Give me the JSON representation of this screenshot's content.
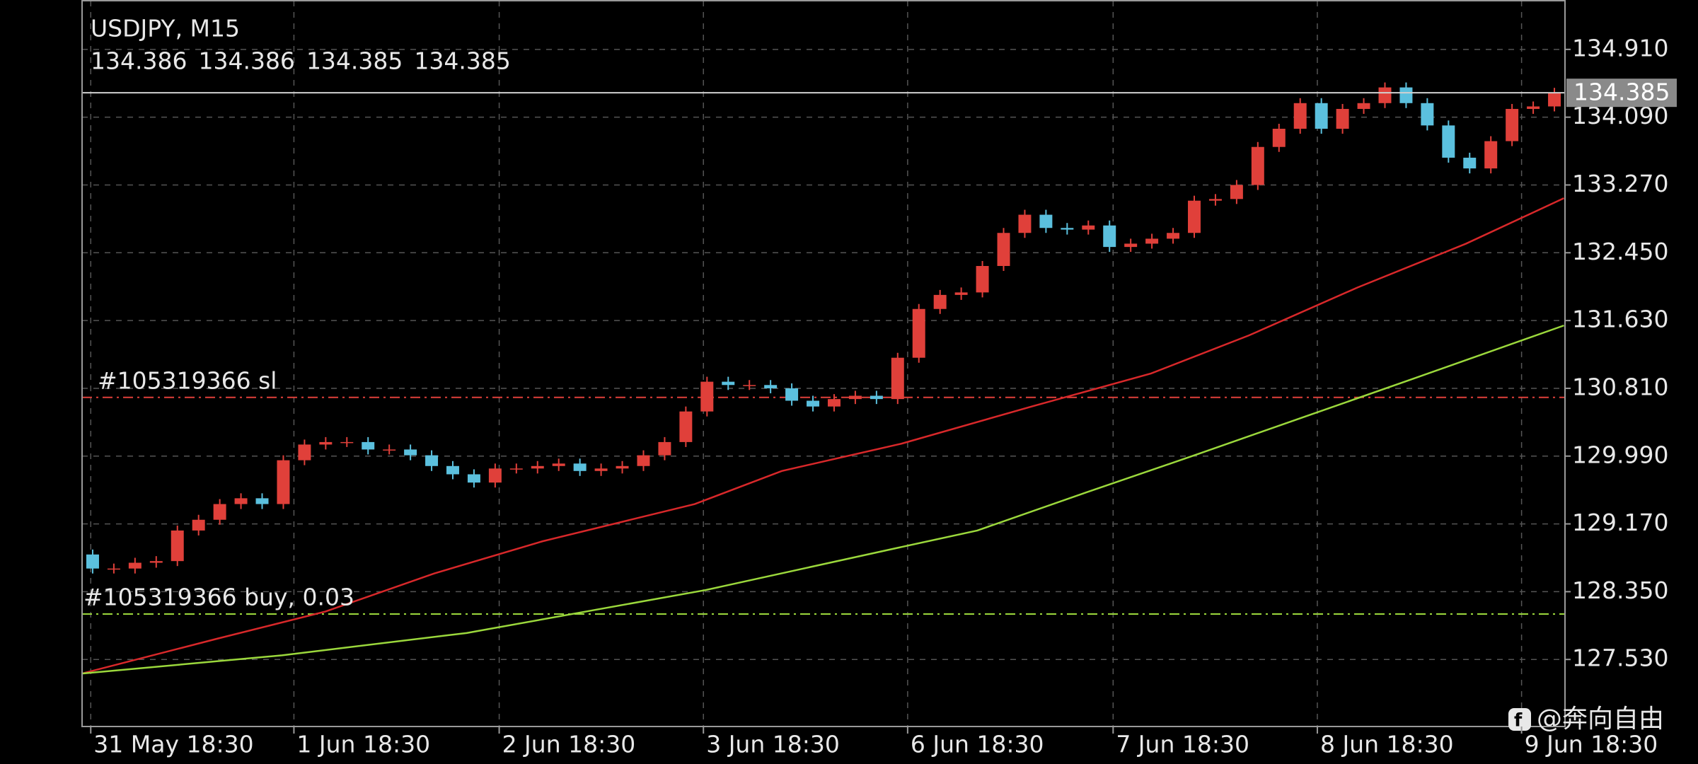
{
  "chart_data": {
    "type": "candlestick",
    "title": "USDJPY, M15",
    "ohlc": [
      134.386,
      134.386,
      134.385,
      134.385
    ],
    "current_price": 134.385,
    "up_color": "#e0403a",
    "down_color": "#5bc0de",
    "x": [
      0.5,
      1.5,
      2.5,
      3.5,
      4.5,
      5.5,
      6.5,
      7.5,
      8.5,
      9.5,
      10.5,
      11.5,
      12.5,
      13.5,
      14.5,
      15.5,
      16.5,
      17.5,
      18.5,
      19.5,
      20.5,
      21.5,
      22.5,
      23.5,
      24.5,
      25.5,
      26.5,
      27.5,
      28.5,
      29.5,
      30.5,
      31.5,
      32.5,
      33.5,
      34.5,
      35.5,
      36.5,
      37.5,
      38.5,
      39.5,
      40.5,
      41.5,
      42.5,
      43.5,
      44.5,
      45.5,
      46.5,
      47.5,
      48.5,
      49.5,
      50.5,
      51.5,
      52.5,
      53.5,
      54.5,
      55.5,
      56.5,
      57.5,
      58.5,
      59.5,
      60.5,
      61.5,
      62.5,
      63.5,
      64.5,
      65.5,
      66.5,
      67.5,
      68.5,
      69.5
    ],
    "open": [
      128.8,
      128.63,
      128.63,
      128.7,
      128.72,
      129.09,
      129.22,
      129.41,
      129.48,
      129.41,
      129.94,
      130.13,
      130.16,
      130.16,
      130.07,
      130.07,
      130.0,
      129.87,
      129.77,
      129.67,
      129.84,
      129.84,
      129.87,
      129.9,
      129.81,
      129.84,
      129.87,
      130.0,
      130.16,
      130.53,
      130.89,
      130.85,
      130.85,
      130.81,
      130.66,
      130.59,
      130.68,
      130.72,
      130.68,
      131.18,
      131.77,
      131.94,
      131.97,
      132.29,
      132.69,
      132.91,
      132.75,
      132.73,
      132.78,
      132.52,
      132.56,
      132.62,
      132.69,
      133.08,
      133.1,
      133.27,
      133.73,
      133.95,
      134.26,
      133.95,
      134.19,
      134.26,
      134.45,
      134.26,
      133.99,
      133.6,
      133.47,
      133.8,
      134.19,
      134.22
    ],
    "high": [
      128.86,
      128.69,
      128.76,
      128.78,
      129.15,
      129.28,
      129.47,
      129.54,
      129.54,
      130.0,
      130.19,
      130.22,
      130.22,
      130.22,
      130.13,
      130.13,
      130.06,
      129.93,
      129.83,
      129.9,
      129.9,
      129.93,
      129.96,
      129.96,
      129.9,
      129.93,
      130.06,
      130.22,
      130.59,
      130.95,
      130.95,
      130.91,
      130.91,
      130.87,
      130.72,
      130.74,
      130.78,
      130.78,
      131.24,
      131.83,
      132.0,
      132.03,
      132.35,
      132.75,
      132.97,
      132.97,
      132.81,
      132.84,
      132.84,
      132.62,
      132.68,
      132.75,
      133.14,
      133.16,
      133.33,
      133.79,
      134.01,
      134.32,
      134.32,
      134.25,
      134.32,
      134.51,
      134.51,
      134.32,
      134.05,
      133.66,
      133.86,
      134.25,
      134.28,
      134.445
    ],
    "low": [
      128.57,
      128.57,
      128.57,
      128.64,
      128.66,
      129.03,
      129.16,
      129.35,
      129.35,
      129.35,
      129.88,
      130.07,
      130.1,
      130.01,
      130.01,
      129.94,
      129.81,
      129.71,
      129.61,
      129.61,
      129.78,
      129.78,
      129.81,
      129.75,
      129.75,
      129.78,
      129.81,
      129.94,
      130.1,
      130.47,
      130.79,
      130.79,
      130.75,
      130.6,
      130.53,
      130.53,
      130.62,
      130.62,
      130.62,
      131.12,
      131.71,
      131.88,
      131.91,
      132.23,
      132.63,
      132.69,
      132.67,
      132.67,
      132.46,
      132.46,
      132.5,
      132.56,
      132.63,
      133.02,
      133.04,
      133.21,
      133.67,
      133.89,
      133.89,
      133.89,
      134.13,
      134.2,
      134.2,
      133.93,
      133.54,
      133.41,
      133.41,
      133.74,
      134.13,
      134.16
    ],
    "close": [
      128.63,
      128.63,
      128.7,
      128.72,
      129.09,
      129.22,
      129.41,
      129.48,
      129.41,
      129.94,
      130.13,
      130.16,
      130.16,
      130.07,
      130.07,
      130.0,
      129.87,
      129.77,
      129.67,
      129.84,
      129.84,
      129.87,
      129.9,
      129.81,
      129.84,
      129.87,
      130.0,
      130.16,
      130.53,
      130.89,
      130.85,
      130.85,
      130.81,
      130.66,
      130.59,
      130.68,
      130.72,
      130.68,
      131.18,
      131.77,
      131.94,
      131.97,
      132.29,
      132.69,
      132.91,
      132.75,
      132.73,
      132.78,
      132.52,
      132.56,
      132.62,
      132.69,
      133.08,
      133.1,
      133.27,
      133.73,
      133.95,
      134.26,
      133.95,
      134.19,
      134.26,
      134.45,
      134.26,
      133.99,
      133.6,
      133.47,
      133.8,
      134.19,
      134.22,
      134.385
    ],
    "series": [
      {
        "color": "#d8282a",
        "x": [
          0,
          6.36,
          11.49,
          16.62,
          21.74,
          28.92,
          33.03,
          38.67,
          44.82,
          50.46,
          55.08,
          60.21,
          65.33,
          69.95
        ],
        "values": [
          127.36,
          127.78,
          128.11,
          128.57,
          128.96,
          129.41,
          129.81,
          130.14,
          130.59,
          130.99,
          131.45,
          132.03,
          132.56,
          133.11
        ]
      },
      {
        "color": "#9bd83c",
        "x": [
          0,
          9.44,
          18.15,
          23.79,
          29.44,
          38.67,
          42.26,
          47.39,
          52.51,
          57.64,
          62.77,
          69.95
        ],
        "values": [
          127.36,
          127.58,
          127.85,
          128.11,
          128.37,
          128.89,
          129.09,
          129.55,
          130.0,
          130.46,
          130.92,
          131.57
        ]
      }
    ],
    "levels": [
      {
        "label": "#105319366 sl",
        "value": 130.7,
        "color": "#e0403a"
      },
      {
        "label": "#105319366 buy, 0.03",
        "value": 128.08,
        "color": "#9bd83c"
      }
    ],
    "xlim": [
      0,
      70
    ],
    "xticks": [
      {
        "value": 0.41,
        "label": "31 May 18:30"
      },
      {
        "value": 10.0,
        "label": "1 Jun 18:30"
      },
      {
        "value": 19.69,
        "label": "2 Jun 18:30"
      },
      {
        "value": 29.33,
        "label": "3 Jun 18:30"
      },
      {
        "value": 38.97,
        "label": "6 Jun 18:30"
      },
      {
        "value": 48.67,
        "label": "7 Jun 18:30"
      },
      {
        "value": 58.31,
        "label": "8 Jun 18:30"
      },
      {
        "value": 67.95,
        "label": "9 Jun 18:30"
      }
    ],
    "ylim": [
      126.719,
      135.499
    ],
    "yticks": [
      {
        "value": 134.91,
        "label": "134.910"
      },
      {
        "value": 134.09,
        "label": "134.090"
      },
      {
        "value": 133.27,
        "label": "133.270"
      },
      {
        "value": 132.45,
        "label": "132.450"
      },
      {
        "value": 131.63,
        "label": "131.630"
      },
      {
        "value": 130.81,
        "label": "130.810"
      },
      {
        "value": 129.99,
        "label": "129.990"
      },
      {
        "value": 129.17,
        "label": "129.170"
      },
      {
        "value": 128.35,
        "label": "128.350"
      },
      {
        "value": 127.53,
        "label": "127.530"
      }
    ],
    "grid": true,
    "watermark": "@奔向自由"
  }
}
